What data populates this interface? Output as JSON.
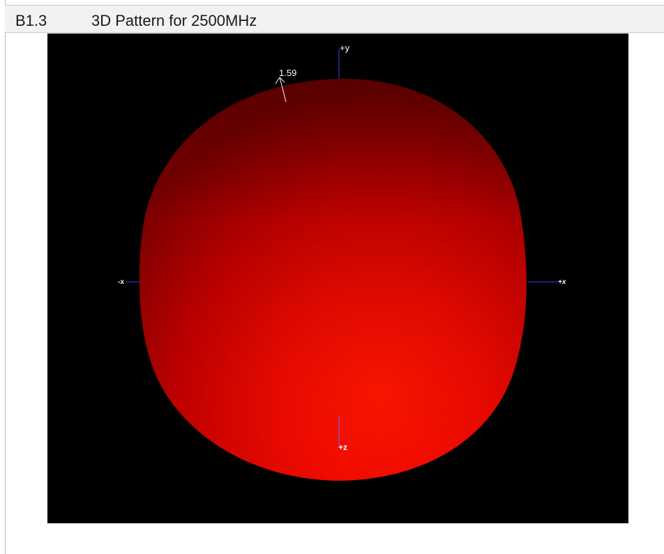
{
  "header": {
    "section_number": "B1.3",
    "title": "3D Pattern for 2500MHz"
  },
  "viewer": {
    "max_gain_label": "1.59",
    "axes": {
      "pos_y": "+y",
      "neg_x": "-x",
      "pos_x": "+x",
      "pos_z": "+z"
    },
    "colors": {
      "background": "#000000",
      "pattern_bright": "#ff1200",
      "pattern_dark": "#8a0000",
      "axis_line": "#3c3cff",
      "label": "#ffffff"
    }
  }
}
